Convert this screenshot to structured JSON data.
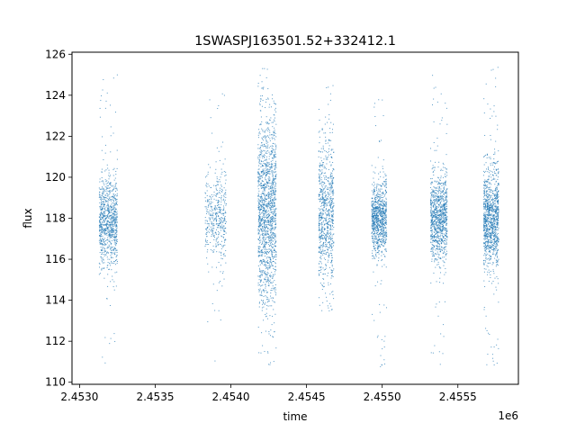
{
  "chart_data": {
    "type": "scatter",
    "title": "1SWASPJ163501.52+332412.1",
    "xlabel": "time",
    "ylabel": "flux",
    "x_offset_label": "1e6",
    "xlim": [
      2.45295,
      2.4559
    ],
    "ylim": [
      109.9,
      126.1
    ],
    "x_ticks": [
      2.453,
      2.4535,
      2.454,
      2.4545,
      2.455,
      2.4555
    ],
    "x_tick_labels": [
      "2.4530",
      "2.4535",
      "2.4540",
      "2.4545",
      "2.4550",
      "2.4555"
    ],
    "y_ticks": [
      110,
      112,
      114,
      116,
      118,
      120,
      122,
      124,
      126
    ],
    "y_tick_labels": [
      "110",
      "112",
      "114",
      "116",
      "118",
      "120",
      "122",
      "124",
      "126"
    ],
    "grid": false,
    "legend": "none",
    "marker_color": "#1f77b4",
    "series": [
      {
        "clusters": [
          {
            "x_start": 2.45313,
            "x_end": 2.45325,
            "y_center": 117.8,
            "y_sd": 1.1,
            "y_min": 110.7,
            "y_max": 125.2,
            "density": 900
          },
          {
            "x_start": 2.45383,
            "x_end": 2.4539,
            "y_center": 118.0,
            "y_sd": 1.0,
            "y_min": 111.0,
            "y_max": 124.1,
            "density": 180
          },
          {
            "x_start": 2.4539,
            "x_end": 2.45397,
            "y_center": 118.0,
            "y_sd": 1.2,
            "y_min": 113.0,
            "y_max": 125.2,
            "density": 260
          },
          {
            "x_start": 2.45418,
            "x_end": 2.4543,
            "y_center": 118.3,
            "y_sd": 2.2,
            "y_min": 110.7,
            "y_max": 125.3,
            "density": 1500
          },
          {
            "x_start": 2.45458,
            "x_end": 2.45468,
            "y_center": 118.2,
            "y_sd": 1.6,
            "y_min": 113.3,
            "y_max": 124.5,
            "density": 800
          },
          {
            "x_start": 2.45493,
            "x_end": 2.45503,
            "y_center": 118.0,
            "y_sd": 0.9,
            "y_min": 110.6,
            "y_max": 124.2,
            "density": 900
          },
          {
            "x_start": 2.45532,
            "x_end": 2.45543,
            "y_center": 118.0,
            "y_sd": 1.0,
            "y_min": 110.7,
            "y_max": 125.3,
            "density": 1000
          },
          {
            "x_start": 2.45567,
            "x_end": 2.45577,
            "y_center": 118.0,
            "y_sd": 1.2,
            "y_min": 110.6,
            "y_max": 125.4,
            "density": 1100
          }
        ]
      }
    ]
  }
}
